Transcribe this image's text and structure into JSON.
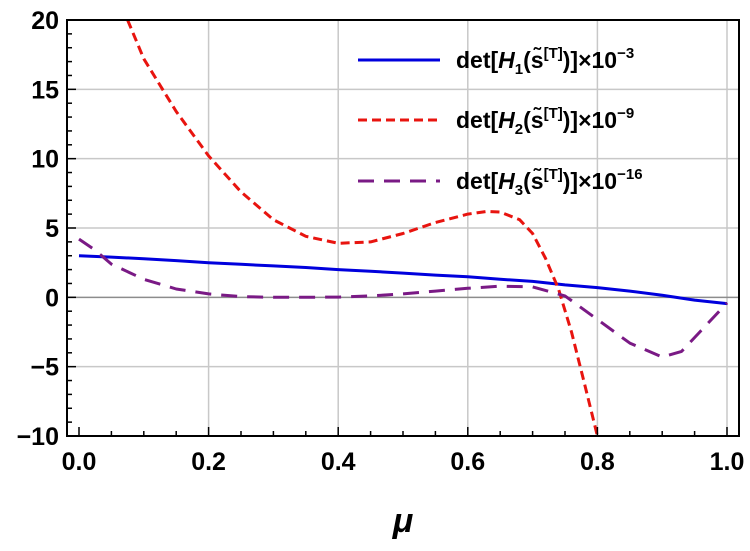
{
  "chart_data": {
    "type": "line",
    "title": "",
    "xlabel": "μ",
    "ylabel": "",
    "xlim": [
      0.0,
      1.0
    ],
    "ylim": [
      -10,
      20
    ],
    "x_ticks": [
      0.0,
      0.2,
      0.4,
      0.6,
      0.8,
      1.0
    ],
    "x_tick_labels": [
      "0.0",
      "0.2",
      "0.4",
      "0.6",
      "0.8",
      "1.0"
    ],
    "y_ticks": [
      -10,
      -5,
      0,
      5,
      10,
      15,
      20
    ],
    "y_tick_labels": [
      "−10",
      "−5",
      "0",
      "5",
      "10",
      "15",
      "20"
    ],
    "grid": true,
    "legend_position": "top-right",
    "series": [
      {
        "name": "det[H1(s̃[T])]×10−3",
        "legend": {
          "prefix": "det[",
          "italic": "H",
          "sub": "1",
          "mid": "(s̃",
          "sup1": "[T]",
          "close": ")]×10",
          "exp": "−3"
        },
        "color": "#0000dd",
        "style": "solid",
        "x": [
          0.0,
          0.05,
          0.1,
          0.15,
          0.2,
          0.25,
          0.3,
          0.35,
          0.4,
          0.45,
          0.5,
          0.55,
          0.6,
          0.65,
          0.7,
          0.75,
          0.8,
          0.85,
          0.9,
          0.95,
          1.0
        ],
        "y": [
          3.0,
          2.9,
          2.78,
          2.65,
          2.5,
          2.38,
          2.27,
          2.15,
          2.0,
          1.88,
          1.75,
          1.6,
          1.48,
          1.3,
          1.15,
          0.9,
          0.7,
          0.45,
          0.15,
          -0.2,
          -0.45
        ]
      },
      {
        "name": "det[H2(s̃[T])]×10−9",
        "legend": {
          "prefix": "det[",
          "italic": "H",
          "sub": "2",
          "mid": "(s̃",
          "sup1": "[T]",
          "close": ")]×10",
          "exp": "−9"
        },
        "color": "#e8140f",
        "style": "dashed",
        "x": [
          0.075,
          0.1,
          0.15,
          0.2,
          0.25,
          0.3,
          0.35,
          0.4,
          0.45,
          0.5,
          0.55,
          0.6,
          0.63,
          0.65,
          0.68,
          0.7,
          0.72,
          0.74,
          0.76,
          0.78,
          0.8
        ],
        "y": [
          20.0,
          17.2,
          13.4,
          10.2,
          7.6,
          5.6,
          4.4,
          3.9,
          4.0,
          4.6,
          5.4,
          6.0,
          6.2,
          6.15,
          5.6,
          4.6,
          2.8,
          0.6,
          -2.5,
          -6.2,
          -10.0
        ]
      },
      {
        "name": "det[H3(s̃[T])]×10−16",
        "legend": {
          "prefix": "det[",
          "italic": "H",
          "sub": "3",
          "mid": "(s̃",
          "sup1": "[T]",
          "close": ")]×10",
          "exp": "−16"
        },
        "color": "#7a1a85",
        "style": "longdash",
        "x": [
          0.0,
          0.025,
          0.05,
          0.1,
          0.15,
          0.2,
          0.25,
          0.3,
          0.35,
          0.4,
          0.45,
          0.5,
          0.55,
          0.6,
          0.65,
          0.7,
          0.75,
          0.8,
          0.85,
          0.9,
          0.93,
          0.96,
          1.0
        ],
        "y": [
          4.2,
          3.4,
          2.4,
          1.3,
          0.6,
          0.25,
          0.05,
          0.0,
          0.0,
          0.02,
          0.1,
          0.25,
          0.45,
          0.65,
          0.8,
          0.75,
          0.1,
          -1.6,
          -3.3,
          -4.3,
          -3.9,
          -2.4,
          -0.4
        ]
      }
    ]
  }
}
